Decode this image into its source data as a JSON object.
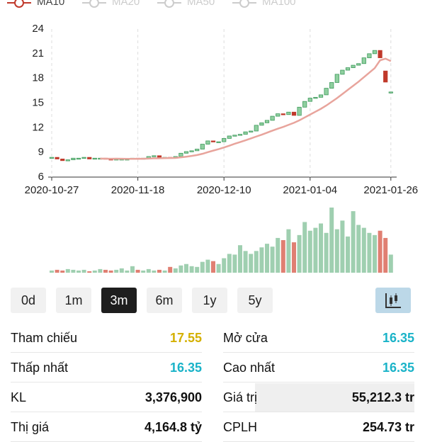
{
  "legend": [
    "MA10",
    "MA20",
    "MA50",
    "MA100"
  ],
  "chart_data": {
    "type": "candlestick",
    "ylim": [
      6,
      24
    ],
    "yticks": [
      6,
      9,
      12,
      15,
      18,
      21,
      24
    ],
    "xticks": [
      {
        "value": 0,
        "label": "2020-10-27"
      },
      {
        "value": 16,
        "label": "2020-11-18"
      },
      {
        "value": 32,
        "label": "2020-12-10"
      },
      {
        "value": 48,
        "label": "2021-01-04"
      },
      {
        "value": 63,
        "label": "2021-01-26"
      }
    ],
    "up_color": "#3e9a5c",
    "down_color": "#c0392b",
    "ma_color": "#e8a49c",
    "open": [
      8.3,
      8.4,
      8.2,
      8.0,
      8.1,
      8.3,
      8.3,
      8.4,
      8.2,
      8.3,
      8.3,
      8.2,
      8.1,
      8.2,
      8.2,
      8.2,
      8.3,
      8.2,
      8.3,
      8.5,
      8.6,
      8.3,
      8.4,
      8.3,
      8.5,
      8.9,
      9.1,
      9.2,
      9.4,
      10.0,
      10.4,
      10.3,
      10.3,
      10.7,
      11.0,
      11.1,
      11.2,
      11.5,
      11.6,
      12.3,
      12.6,
      12.9,
      13.4,
      13.7,
      13.6,
      13.9,
      13.5,
      14.5,
      15.2,
      15.6,
      15.7,
      16.0,
      16.8,
      17.5,
      18.5,
      19.0,
      19.3,
      19.6,
      19.8,
      20.5,
      21.0,
      21.4,
      18.9,
      16.35
    ],
    "close": [
      8.4,
      8.2,
      8.0,
      8.1,
      8.3,
      8.3,
      8.4,
      8.2,
      8.3,
      8.3,
      8.2,
      8.1,
      8.2,
      8.2,
      8.2,
      8.3,
      8.2,
      8.3,
      8.5,
      8.6,
      8.3,
      8.4,
      8.3,
      8.5,
      8.9,
      9.1,
      9.2,
      9.4,
      10.0,
      10.4,
      10.3,
      10.3,
      10.7,
      11.0,
      11.1,
      11.2,
      11.5,
      11.6,
      12.3,
      12.6,
      12.9,
      13.4,
      13.7,
      13.6,
      13.9,
      13.5,
      14.5,
      15.2,
      15.6,
      15.7,
      16.0,
      16.8,
      17.5,
      18.5,
      19.0,
      19.3,
      19.6,
      19.8,
      20.5,
      21.0,
      21.4,
      20.5,
      17.55,
      16.35
    ],
    "ma10": [
      null,
      null,
      null,
      null,
      null,
      null,
      null,
      null,
      null,
      8.25,
      8.24,
      8.23,
      8.24,
      8.23,
      8.22,
      8.22,
      8.22,
      8.23,
      8.25,
      8.28,
      8.28,
      8.3,
      8.31,
      8.33,
      8.4,
      8.48,
      8.57,
      8.68,
      8.83,
      9.03,
      9.22,
      9.4,
      9.6,
      9.82,
      10.05,
      10.26,
      10.47,
      10.7,
      10.93,
      11.15,
      11.4,
      11.65,
      11.88,
      12.1,
      12.35,
      12.6,
      12.9,
      13.25,
      13.6,
      13.95,
      14.3,
      14.7,
      15.15,
      15.6,
      16.1,
      16.6,
      17.1,
      17.6,
      18.15,
      18.7,
      19.25,
      20.2,
      20.4,
      20.1
    ],
    "volume": [
      3,
      4,
      3,
      5,
      4,
      3,
      4,
      2,
      3,
      5,
      4,
      3,
      4,
      6,
      3,
      9,
      4,
      3,
      5,
      3,
      4,
      3,
      8,
      6,
      10,
      12,
      9,
      8,
      15,
      18,
      16,
      12,
      20,
      26,
      25,
      38,
      30,
      26,
      30,
      35,
      40,
      36,
      48,
      45,
      60,
      42,
      52,
      70,
      58,
      62,
      68,
      55,
      90,
      60,
      72,
      50,
      85,
      66,
      62,
      55,
      52,
      58,
      48,
      25
    ]
  },
  "ranges": [
    "0d",
    "1m",
    "3m",
    "6m",
    "1y",
    "5y"
  ],
  "active_range": 2,
  "stats": [
    [
      {
        "label": "Tham chiếu",
        "value": "17.55",
        "color": "#d4b000"
      },
      {
        "label": "Mở cửa",
        "value": "16.35",
        "color": "#1ab3c8"
      }
    ],
    [
      {
        "label": "Thấp nhất",
        "value": "16.35",
        "color": "#1ab3c8"
      },
      {
        "label": "Cao nhất",
        "value": "16.35",
        "color": "#1ab3c8"
      }
    ],
    [
      {
        "label": "KL",
        "value": "3,376,900",
        "color": "#111111"
      },
      {
        "label": "Giá trị",
        "value": "55,212.3 tr",
        "color": "#111111"
      }
    ],
    [
      {
        "label": "Thị giá",
        "value": "4,164.8 tỷ",
        "color": "#111111"
      },
      {
        "label": "CPLH",
        "value": "254.73 tr",
        "color": "#111111"
      }
    ]
  ]
}
